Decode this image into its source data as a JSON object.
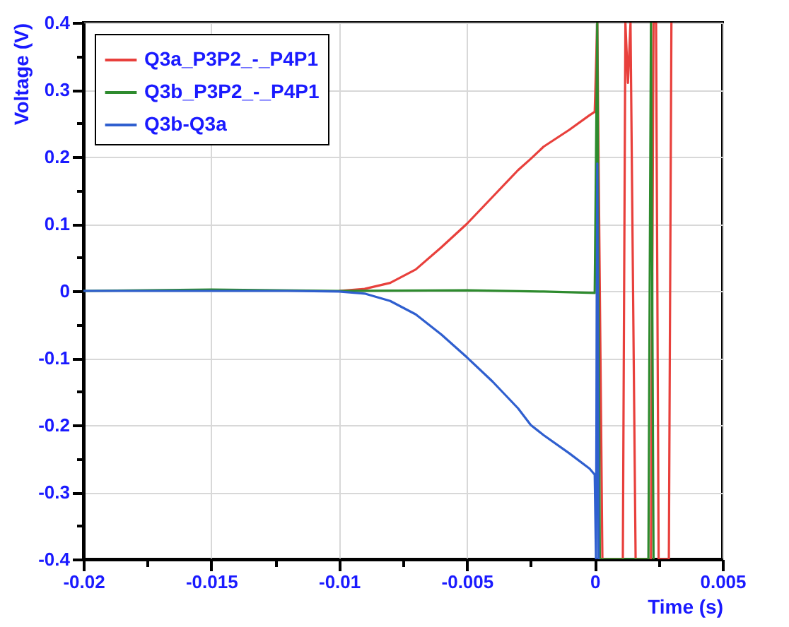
{
  "chart_data": {
    "type": "line",
    "xlabel": "Time (s)",
    "ylabel": "Voltage (V)",
    "xlim": [
      -0.02,
      0.005
    ],
    "ylim": [
      -0.4,
      0.4
    ],
    "xticks": [
      -0.02,
      {
        "value": -0.0175,
        "label": null
      },
      -0.015,
      {
        "value": -0.0125,
        "label": null
      },
      -0.01,
      {
        "value": -0.0075,
        "label": null
      },
      -0.005,
      {
        "value": -0.0025,
        "label": null
      },
      0,
      {
        "value": 0.0025,
        "label": null
      },
      0.005
    ],
    "yticks": [
      -0.4,
      {
        "value": -0.35,
        "label": null
      },
      -0.3,
      {
        "value": -0.25,
        "label": null
      },
      -0.2,
      {
        "value": -0.15,
        "label": null
      },
      -0.1,
      {
        "value": -0.05,
        "label": null
      },
      0,
      {
        "value": 0.05,
        "label": null
      },
      0.1,
      {
        "value": 0.15,
        "label": null
      },
      0.2,
      {
        "value": 0.25,
        "label": null
      },
      0.3,
      {
        "value": 0.35,
        "label": null
      },
      0.4
    ],
    "grid": true,
    "legend": "top left",
    "marker": "none",
    "line_style": "solid",
    "series": [
      {
        "name": "Q3a_P3P2_-_P4P1",
        "color": "#e8403c",
        "x": [
          -0.01,
          -0.009,
          -0.008,
          -0.007,
          -0.006,
          -0.005,
          -0.004,
          -0.003,
          -0.0025,
          -0.002,
          -0.001,
          -0.0002,
          0,
          0.0001,
          0.0003,
          0.0011,
          0.0012,
          0.0013,
          0.0014,
          0.0016,
          0.0022,
          0.0023,
          0.0024,
          0.0025,
          0.0029,
          0.003
        ],
        "values": [
          0,
          0.003,
          0.012,
          0.032,
          0.065,
          0.1,
          0.14,
          0.18,
          0.197,
          0.215,
          0.24,
          0.262,
          0.267,
          0.4,
          -0.4,
          -0.4,
          0.4,
          0.31,
          0.4,
          -0.4,
          -0.4,
          0.4,
          0.4,
          -0.4,
          -0.4,
          0.4
        ]
      },
      {
        "name": "Q3b_P3P2_-_P4P1",
        "color": "#2e8b2e",
        "x": [
          -0.02,
          -0.015,
          -0.01,
          -0.005,
          -0.002,
          0,
          0.0001,
          0.0002,
          0.0021,
          0.0022,
          0.0023
        ],
        "values": [
          0,
          0.002,
          0,
          0.001,
          -0.001,
          -0.003,
          0.4,
          -0.4,
          -0.4,
          0.4,
          -0.4
        ]
      },
      {
        "name": "Q3b-Q3a",
        "color": "#2f5fcf",
        "x": [
          -0.02,
          -0.015,
          -0.012,
          -0.01,
          -0.009,
          -0.008,
          -0.007,
          -0.006,
          -0.005,
          -0.004,
          -0.003,
          -0.0025,
          -0.002,
          -0.001,
          -0.0002,
          0,
          5e-05,
          0.0001,
          0.00015
        ],
        "values": [
          0,
          0,
          0,
          -0.001,
          -0.004,
          -0.015,
          -0.035,
          -0.065,
          -0.099,
          -0.135,
          -0.175,
          -0.2,
          -0.215,
          -0.242,
          -0.265,
          -0.274,
          -0.4,
          0.19,
          -0.4
        ]
      }
    ]
  }
}
